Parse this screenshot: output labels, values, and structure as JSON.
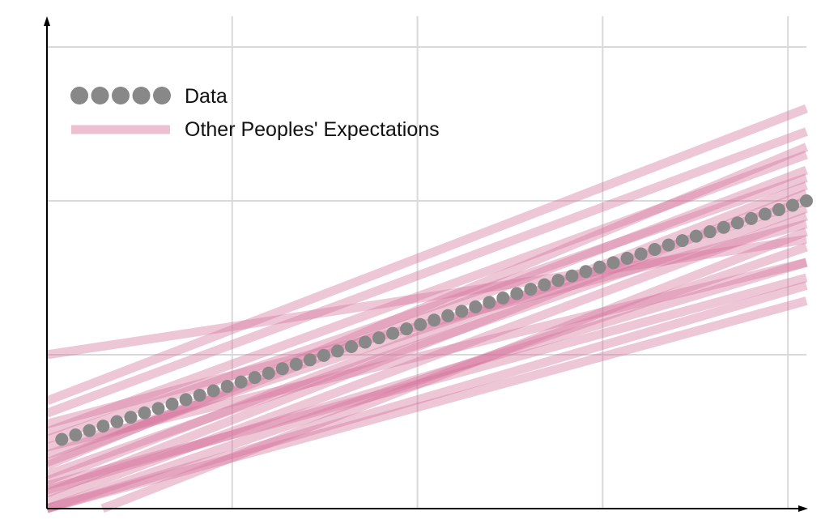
{
  "chart_data": {
    "type": "line",
    "title": "",
    "xlabel": "",
    "ylabel": "",
    "xlim": [
      0,
      4.1
    ],
    "ylim": [
      0,
      3.2
    ],
    "grid": true,
    "ticks_labeled": false,
    "legend": {
      "placement": "top-left",
      "entries": [
        {
          "label": "Data",
          "marker": "dots",
          "color": "#888888"
        },
        {
          "label": "Other Peoples' Expectations",
          "marker": "line",
          "color": "#d4749a"
        }
      ]
    },
    "series": [
      {
        "name": "Data",
        "style": "scatter",
        "color": "#888888",
        "x_start": 0.08,
        "x_end": 4.1,
        "y_start": 0.45,
        "y_end": 2.0,
        "point_count": 55
      }
    ],
    "expectation_lines": {
      "color": "#d4749a",
      "opacity": 0.4,
      "lines": [
        {
          "x0": 0,
          "y0": 1.0,
          "x1": 4.1,
          "y1": 1.75
        },
        {
          "x0": 0,
          "y0": 0.7,
          "x1": 4.1,
          "y1": 2.6
        },
        {
          "x0": 0,
          "y0": 0.62,
          "x1": 4.1,
          "y1": 2.45
        },
        {
          "x0": 0,
          "y0": 0.5,
          "x1": 4.1,
          "y1": 2.3
        },
        {
          "x0": 0,
          "y0": 0.45,
          "x1": 4.1,
          "y1": 2.15
        },
        {
          "x0": 0,
          "y0": 0.35,
          "x1": 4.1,
          "y1": 2.0
        },
        {
          "x0": 0,
          "y0": 0.3,
          "x1": 4.1,
          "y1": 2.2
        },
        {
          "x0": 0,
          "y0": 0.22,
          "x1": 4.1,
          "y1": 1.95
        },
        {
          "x0": 0,
          "y0": 0.18,
          "x1": 4.1,
          "y1": 2.1
        },
        {
          "x0": 0,
          "y0": 0.1,
          "x1": 4.1,
          "y1": 2.05
        },
        {
          "x0": 0,
          "y0": 0.05,
          "x1": 4.1,
          "y1": 1.9
        },
        {
          "x0": 0,
          "y0": 0.0,
          "x1": 4.1,
          "y1": 1.7
        },
        {
          "x0": 0,
          "y0": 0.0,
          "x1": 4.1,
          "y1": 1.45
        },
        {
          "x0": 0,
          "y0": 0.0,
          "x1": 4.1,
          "y1": 1.35
        },
        {
          "x0": 0,
          "y0": 0.15,
          "x1": 4.1,
          "y1": 1.5
        },
        {
          "x0": 0,
          "y0": 0.4,
          "x1": 4.1,
          "y1": 1.6
        },
        {
          "x0": 0,
          "y0": 0.55,
          "x1": 4.1,
          "y1": 1.85
        },
        {
          "x0": 0.3,
          "y0": 0.0,
          "x1": 4.1,
          "y1": 1.8
        },
        {
          "x0": 0,
          "y0": 0.28,
          "x1": 4.1,
          "y1": 2.35
        },
        {
          "x0": 0,
          "y0": 0.12,
          "x1": 4.1,
          "y1": 1.6
        }
      ]
    }
  }
}
